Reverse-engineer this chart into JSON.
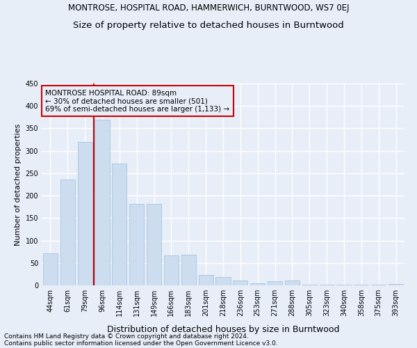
{
  "title": "MONTROSE, HOSPITAL ROAD, HAMMERWICH, BURNTWOOD, WS7 0EJ",
  "subtitle": "Size of property relative to detached houses in Burntwood",
  "xlabel": "Distribution of detached houses by size in Burntwood",
  "ylabel": "Number of detached properties",
  "categories": [
    "44sqm",
    "61sqm",
    "79sqm",
    "96sqm",
    "114sqm",
    "131sqm",
    "149sqm",
    "166sqm",
    "183sqm",
    "201sqm",
    "218sqm",
    "236sqm",
    "253sqm",
    "271sqm",
    "288sqm",
    "305sqm",
    "323sqm",
    "340sqm",
    "358sqm",
    "375sqm",
    "393sqm"
  ],
  "values": [
    71,
    236,
    319,
    370,
    271,
    182,
    182,
    67,
    68,
    23,
    18,
    11,
    5,
    10,
    11,
    1,
    1,
    1,
    1,
    1,
    3
  ],
  "bar_color": "#ccddf0",
  "bar_edge_color": "#9bbcde",
  "marker_color": "#cc0000",
  "annotation_title": "MONTROSE HOSPITAL ROAD: 89sqm",
  "annotation_line1": "← 30% of detached houses are smaller (501)",
  "annotation_line2": "69% of semi-detached houses are larger (1,133) →",
  "annotation_box_color": "#cc0000",
  "ylim": [
    0,
    450
  ],
  "yticks": [
    0,
    50,
    100,
    150,
    200,
    250,
    300,
    350,
    400,
    450
  ],
  "footer1": "Contains HM Land Registry data © Crown copyright and database right 2024.",
  "footer2": "Contains public sector information licensed under the Open Government Licence v3.0.",
  "background_color": "#e8eef8",
  "grid_color": "#ffffff",
  "title_fontsize": 8.5,
  "subtitle_fontsize": 9.5,
  "xlabel_fontsize": 9,
  "ylabel_fontsize": 8,
  "tick_fontsize": 7,
  "footer_fontsize": 6.5,
  "annot_fontsize": 7.5
}
